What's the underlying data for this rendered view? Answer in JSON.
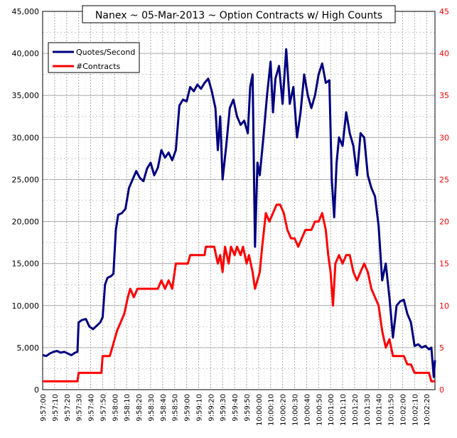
{
  "chart_data": {
    "type": "line",
    "title": "Nanex ~ 05-Mar-2013 ~ Option Contracts w/ High Counts",
    "xlabel": "",
    "ylabel": "",
    "x_ticks": [
      "9:57:00",
      "9:57:10",
      "9:57:20",
      "9:57:30",
      "9:57:40",
      "9:57:50",
      "9:58:00",
      "9:58:10",
      "9:58:20",
      "9:58:30",
      "9:58:40",
      "9:58:50",
      "9:59:00",
      "9:59:10",
      "9:59:20",
      "9:59:30",
      "9:59:40",
      "9:59:50",
      "10:00:00",
      "10:00:10",
      "10:00:20",
      "10:00:30",
      "10:00:40",
      "10:00:50",
      "10:01:00",
      "10:01:10",
      "10:01:20",
      "10:01:30",
      "10:01:40",
      "10:01:50",
      "10:02:00",
      "10:02:10",
      "10:02:20"
    ],
    "y_left": {
      "min": 0,
      "max": 45000,
      "ticks": [
        "0",
        "5,000",
        "10,000",
        "15,000",
        "20,000",
        "25,000",
        "30,000",
        "35,000",
        "40,000",
        "45,000"
      ],
      "color": "#000000"
    },
    "y_right": {
      "min": 0,
      "max": 45,
      "ticks": [
        "0",
        "5",
        "10",
        "15",
        "20",
        "25",
        "30",
        "35",
        "40",
        "45"
      ],
      "color": "#ff0000"
    },
    "grid": true,
    "legend_position": "top-left",
    "x_seconds_range": [
      0,
      327
    ],
    "series": [
      {
        "name": "Quotes/Second",
        "axis": "left",
        "color": "#000080",
        "points": [
          [
            0,
            4100
          ],
          [
            3,
            4000
          ],
          [
            6,
            4300
          ],
          [
            9,
            4500
          ],
          [
            12,
            4600
          ],
          [
            15,
            4400
          ],
          [
            18,
            4500
          ],
          [
            21,
            4300
          ],
          [
            24,
            4100
          ],
          [
            27,
            4400
          ],
          [
            29,
            4500
          ],
          [
            30,
            8000
          ],
          [
            33,
            8300
          ],
          [
            36,
            8400
          ],
          [
            39,
            7500
          ],
          [
            42,
            7200
          ],
          [
            45,
            7600
          ],
          [
            48,
            8000
          ],
          [
            50,
            8600
          ],
          [
            52,
            12500
          ],
          [
            54,
            13300
          ],
          [
            57,
            13500
          ],
          [
            59,
            13800
          ],
          [
            61,
            19000
          ],
          [
            63,
            20800
          ],
          [
            66,
            21000
          ],
          [
            69,
            21500
          ],
          [
            72,
            24000
          ],
          [
            75,
            25000
          ],
          [
            78,
            26000
          ],
          [
            81,
            25200
          ],
          [
            84,
            24800
          ],
          [
            87,
            26300
          ],
          [
            90,
            27000
          ],
          [
            93,
            25500
          ],
          [
            96,
            26400
          ],
          [
            99,
            28500
          ],
          [
            102,
            27600
          ],
          [
            105,
            28200
          ],
          [
            108,
            27300
          ],
          [
            111,
            28500
          ],
          [
            114,
            33800
          ],
          [
            117,
            34500
          ],
          [
            120,
            34300
          ],
          [
            123,
            36000
          ],
          [
            126,
            35500
          ],
          [
            129,
            36300
          ],
          [
            132,
            35800
          ],
          [
            135,
            36500
          ],
          [
            138,
            37000
          ],
          [
            141,
            35500
          ],
          [
            144,
            33500
          ],
          [
            146,
            28500
          ],
          [
            148,
            32500
          ],
          [
            150,
            25000
          ],
          [
            153,
            29000
          ],
          [
            156,
            33500
          ],
          [
            159,
            34500
          ],
          [
            162,
            32500
          ],
          [
            165,
            31500
          ],
          [
            168,
            32000
          ],
          [
            171,
            30500
          ],
          [
            173,
            36000
          ],
          [
            175,
            37500
          ],
          [
            177,
            17000
          ],
          [
            179,
            27000
          ],
          [
            181,
            25500
          ],
          [
            184,
            30000
          ],
          [
            187,
            35000
          ],
          [
            190,
            39000
          ],
          [
            192,
            33000
          ],
          [
            194,
            37000
          ],
          [
            197,
            38500
          ],
          [
            200,
            34000
          ],
          [
            203,
            40500
          ],
          [
            206,
            34000
          ],
          [
            209,
            36000
          ],
          [
            212,
            30000
          ],
          [
            215,
            33000
          ],
          [
            218,
            37500
          ],
          [
            221,
            35000
          ],
          [
            224,
            33500
          ],
          [
            227,
            35000
          ],
          [
            230,
            37500
          ],
          [
            233,
            38800
          ],
          [
            236,
            36500
          ],
          [
            239,
            36800
          ],
          [
            241,
            25000
          ],
          [
            243,
            20500
          ],
          [
            245,
            27000
          ],
          [
            247,
            30000
          ],
          [
            250,
            29000
          ],
          [
            253,
            33000
          ],
          [
            256,
            30500
          ],
          [
            259,
            29000
          ],
          [
            262,
            25500
          ],
          [
            265,
            30500
          ],
          [
            268,
            30000
          ],
          [
            271,
            25500
          ],
          [
            274,
            24000
          ],
          [
            277,
            23000
          ],
          [
            280,
            19500
          ],
          [
            283,
            13000
          ],
          [
            286,
            15000
          ],
          [
            289,
            11000
          ],
          [
            292,
            6200
          ],
          [
            295,
            10000
          ],
          [
            298,
            10500
          ],
          [
            301,
            10700
          ],
          [
            304,
            9000
          ],
          [
            307,
            8000
          ],
          [
            310,
            5200
          ],
          [
            313,
            5400
          ],
          [
            316,
            5000
          ],
          [
            319,
            5200
          ],
          [
            322,
            4800
          ],
          [
            324,
            5000
          ],
          [
            326,
            1500
          ],
          [
            327,
            3500
          ]
        ]
      },
      {
        "name": "#Contracts",
        "axis": "right",
        "color": "#ff0000",
        "points": [
          [
            0,
            1
          ],
          [
            29,
            1
          ],
          [
            30,
            2
          ],
          [
            49,
            2
          ],
          [
            50,
            4
          ],
          [
            56,
            4
          ],
          [
            58,
            5
          ],
          [
            62,
            7
          ],
          [
            65,
            8
          ],
          [
            68,
            9
          ],
          [
            71,
            11
          ],
          [
            73,
            12
          ],
          [
            76,
            11
          ],
          [
            79,
            12
          ],
          [
            96,
            12
          ],
          [
            99,
            13
          ],
          [
            102,
            12
          ],
          [
            105,
            13
          ],
          [
            108,
            12
          ],
          [
            111,
            15
          ],
          [
            121,
            15
          ],
          [
            123,
            16
          ],
          [
            135,
            16
          ],
          [
            136,
            17
          ],
          [
            143,
            17
          ],
          [
            146,
            15
          ],
          [
            148,
            16
          ],
          [
            150,
            14
          ],
          [
            152,
            17
          ],
          [
            155,
            15
          ],
          [
            157,
            17
          ],
          [
            160,
            16
          ],
          [
            162,
            17
          ],
          [
            165,
            16
          ],
          [
            167,
            17
          ],
          [
            170,
            15
          ],
          [
            172,
            16
          ],
          [
            175,
            14
          ],
          [
            177,
            12
          ],
          [
            179,
            13
          ],
          [
            181,
            14
          ],
          [
            183,
            17
          ],
          [
            186,
            21
          ],
          [
            189,
            20
          ],
          [
            192,
            21
          ],
          [
            195,
            22
          ],
          [
            198,
            22
          ],
          [
            201,
            21
          ],
          [
            204,
            19
          ],
          [
            207,
            18
          ],
          [
            210,
            18
          ],
          [
            213,
            17
          ],
          [
            216,
            18
          ],
          [
            219,
            19
          ],
          [
            221,
            19
          ],
          [
            224,
            19
          ],
          [
            227,
            20
          ],
          [
            230,
            20
          ],
          [
            233,
            21
          ],
          [
            236,
            19
          ],
          [
            238,
            16
          ],
          [
            240,
            14
          ],
          [
            242,
            10
          ],
          [
            244,
            15
          ],
          [
            247,
            16
          ],
          [
            250,
            15
          ],
          [
            253,
            16
          ],
          [
            256,
            16
          ],
          [
            259,
            14
          ],
          [
            262,
            13
          ],
          [
            265,
            14
          ],
          [
            268,
            15
          ],
          [
            271,
            14
          ],
          [
            274,
            12
          ],
          [
            277,
            11
          ],
          [
            280,
            10
          ],
          [
            283,
            7
          ],
          [
            286,
            5
          ],
          [
            289,
            6
          ],
          [
            292,
            4
          ],
          [
            295,
            4
          ],
          [
            298,
            4
          ],
          [
            301,
            4
          ],
          [
            304,
            3
          ],
          [
            307,
            3
          ],
          [
            310,
            2
          ],
          [
            319,
            2
          ],
          [
            322,
            2
          ],
          [
            324,
            1
          ],
          [
            327,
            1
          ]
        ]
      }
    ]
  }
}
